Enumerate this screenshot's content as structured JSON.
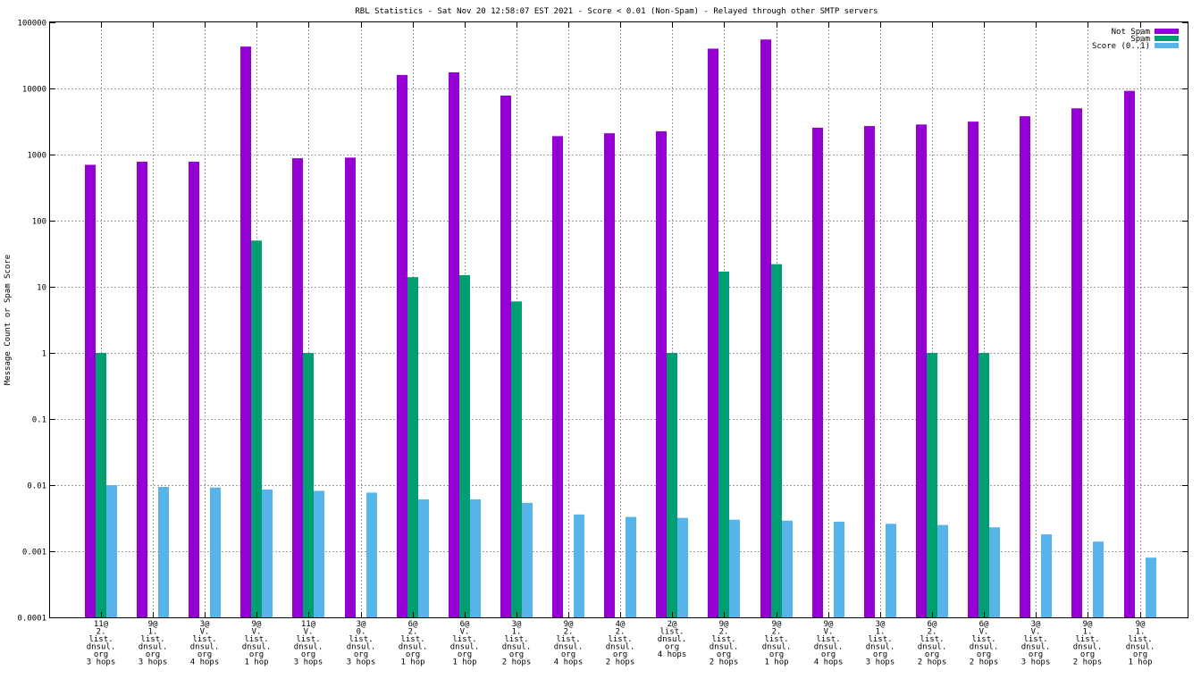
{
  "chart_data": {
    "type": "bar",
    "title": "RBL Statistics - Sat Nov 20 12:58:07 EST 2021 - Score < 0.01 (Non-Spam) - Relayed through other SMTP servers",
    "xlabel": "",
    "ylabel": "Message Count or Spam Score",
    "yscale": "log",
    "ylim": [
      0.0001,
      100000
    ],
    "ytick_labels": [
      "0.0001",
      "0.001",
      "0.01",
      "0.1",
      "1",
      "10",
      "100",
      "1000",
      "10000",
      "100000"
    ],
    "grid": true,
    "legend_position": "top-right",
    "categories": [
      [
        "11@",
        "2.",
        "list.",
        "dnsul.",
        "org",
        "3 hops"
      ],
      [
        "9@",
        "1.",
        "list.",
        "dnsul.",
        "org",
        "3 hops"
      ],
      [
        "3@",
        "V.",
        "list.",
        "dnsul.",
        "org",
        "4 hops"
      ],
      [
        "9@",
        "V.",
        "list.",
        "dnsul.",
        "org",
        "1 hop"
      ],
      [
        "11@",
        "V.",
        "list.",
        "dnsul.",
        "org",
        "3 hops"
      ],
      [
        "3@",
        "0.",
        "list.",
        "dnsul.",
        "org",
        "3 hops"
      ],
      [
        "6@",
        "2.",
        "list.",
        "dnsul.",
        "org",
        "1 hop"
      ],
      [
        "6@",
        "V.",
        "list.",
        "dnsul.",
        "org",
        "1 hop"
      ],
      [
        "3@",
        "1.",
        "list.",
        "dnsul.",
        "org",
        "2 hops"
      ],
      [
        "9@",
        "2.",
        "list.",
        "dnsul.",
        "org",
        "4 hops"
      ],
      [
        "4@",
        "2.",
        "list.",
        "dnsul.",
        "org",
        "2 hops"
      ],
      [
        "2@",
        "list.",
        "dnsul.",
        "org",
        "4 hops"
      ],
      [
        "9@",
        "2.",
        "list.",
        "dnsul.",
        "org",
        "2 hops"
      ],
      [
        "9@",
        "2.",
        "list.",
        "dnsul.",
        "org",
        "1 hop"
      ],
      [
        "9@",
        "V.",
        "list.",
        "dnsul.",
        "org",
        "4 hops"
      ],
      [
        "3@",
        "1.",
        "list.",
        "dnsul.",
        "org",
        "3 hops"
      ],
      [
        "6@",
        "2.",
        "list.",
        "dnsul.",
        "org",
        "2 hops"
      ],
      [
        "6@",
        "V.",
        "list.",
        "dnsul.",
        "org",
        "2 hops"
      ],
      [
        "3@",
        "V.",
        "list.",
        "dnsul.",
        "org",
        "3 hops"
      ],
      [
        "9@",
        "1.",
        "list.",
        "dnsul.",
        "org",
        "2 hops"
      ],
      [
        "9@",
        "1.",
        "list.",
        "dnsul.",
        "org",
        "1 hop"
      ]
    ],
    "series": [
      {
        "name": "Not Spam",
        "color": "#9400d3",
        "values": [
          700,
          780,
          780,
          43000,
          880,
          900,
          16000,
          17500,
          7800,
          1900,
          2100,
          2250,
          40000,
          55000,
          2550,
          2700,
          2850,
          3150,
          3800,
          5000,
          9200
        ]
      },
      {
        "name": "Spam",
        "color": "#009e73",
        "values": [
          1,
          0,
          0,
          50,
          1,
          0,
          14,
          15,
          6,
          0,
          0,
          1,
          17,
          22,
          0,
          0,
          1,
          1,
          0,
          0,
          0
        ]
      },
      {
        "name": "Score (0..1)",
        "color": "#56b4e9",
        "values": [
          0.01,
          0.0094,
          0.0092,
          0.0086,
          0.0082,
          0.0077,
          0.0061,
          0.0061,
          0.0054,
          0.0036,
          0.0033,
          0.0032,
          0.003,
          0.0029,
          0.0028,
          0.0026,
          0.0025,
          0.0023,
          0.0018,
          0.0014,
          0.0008
        ]
      }
    ]
  }
}
